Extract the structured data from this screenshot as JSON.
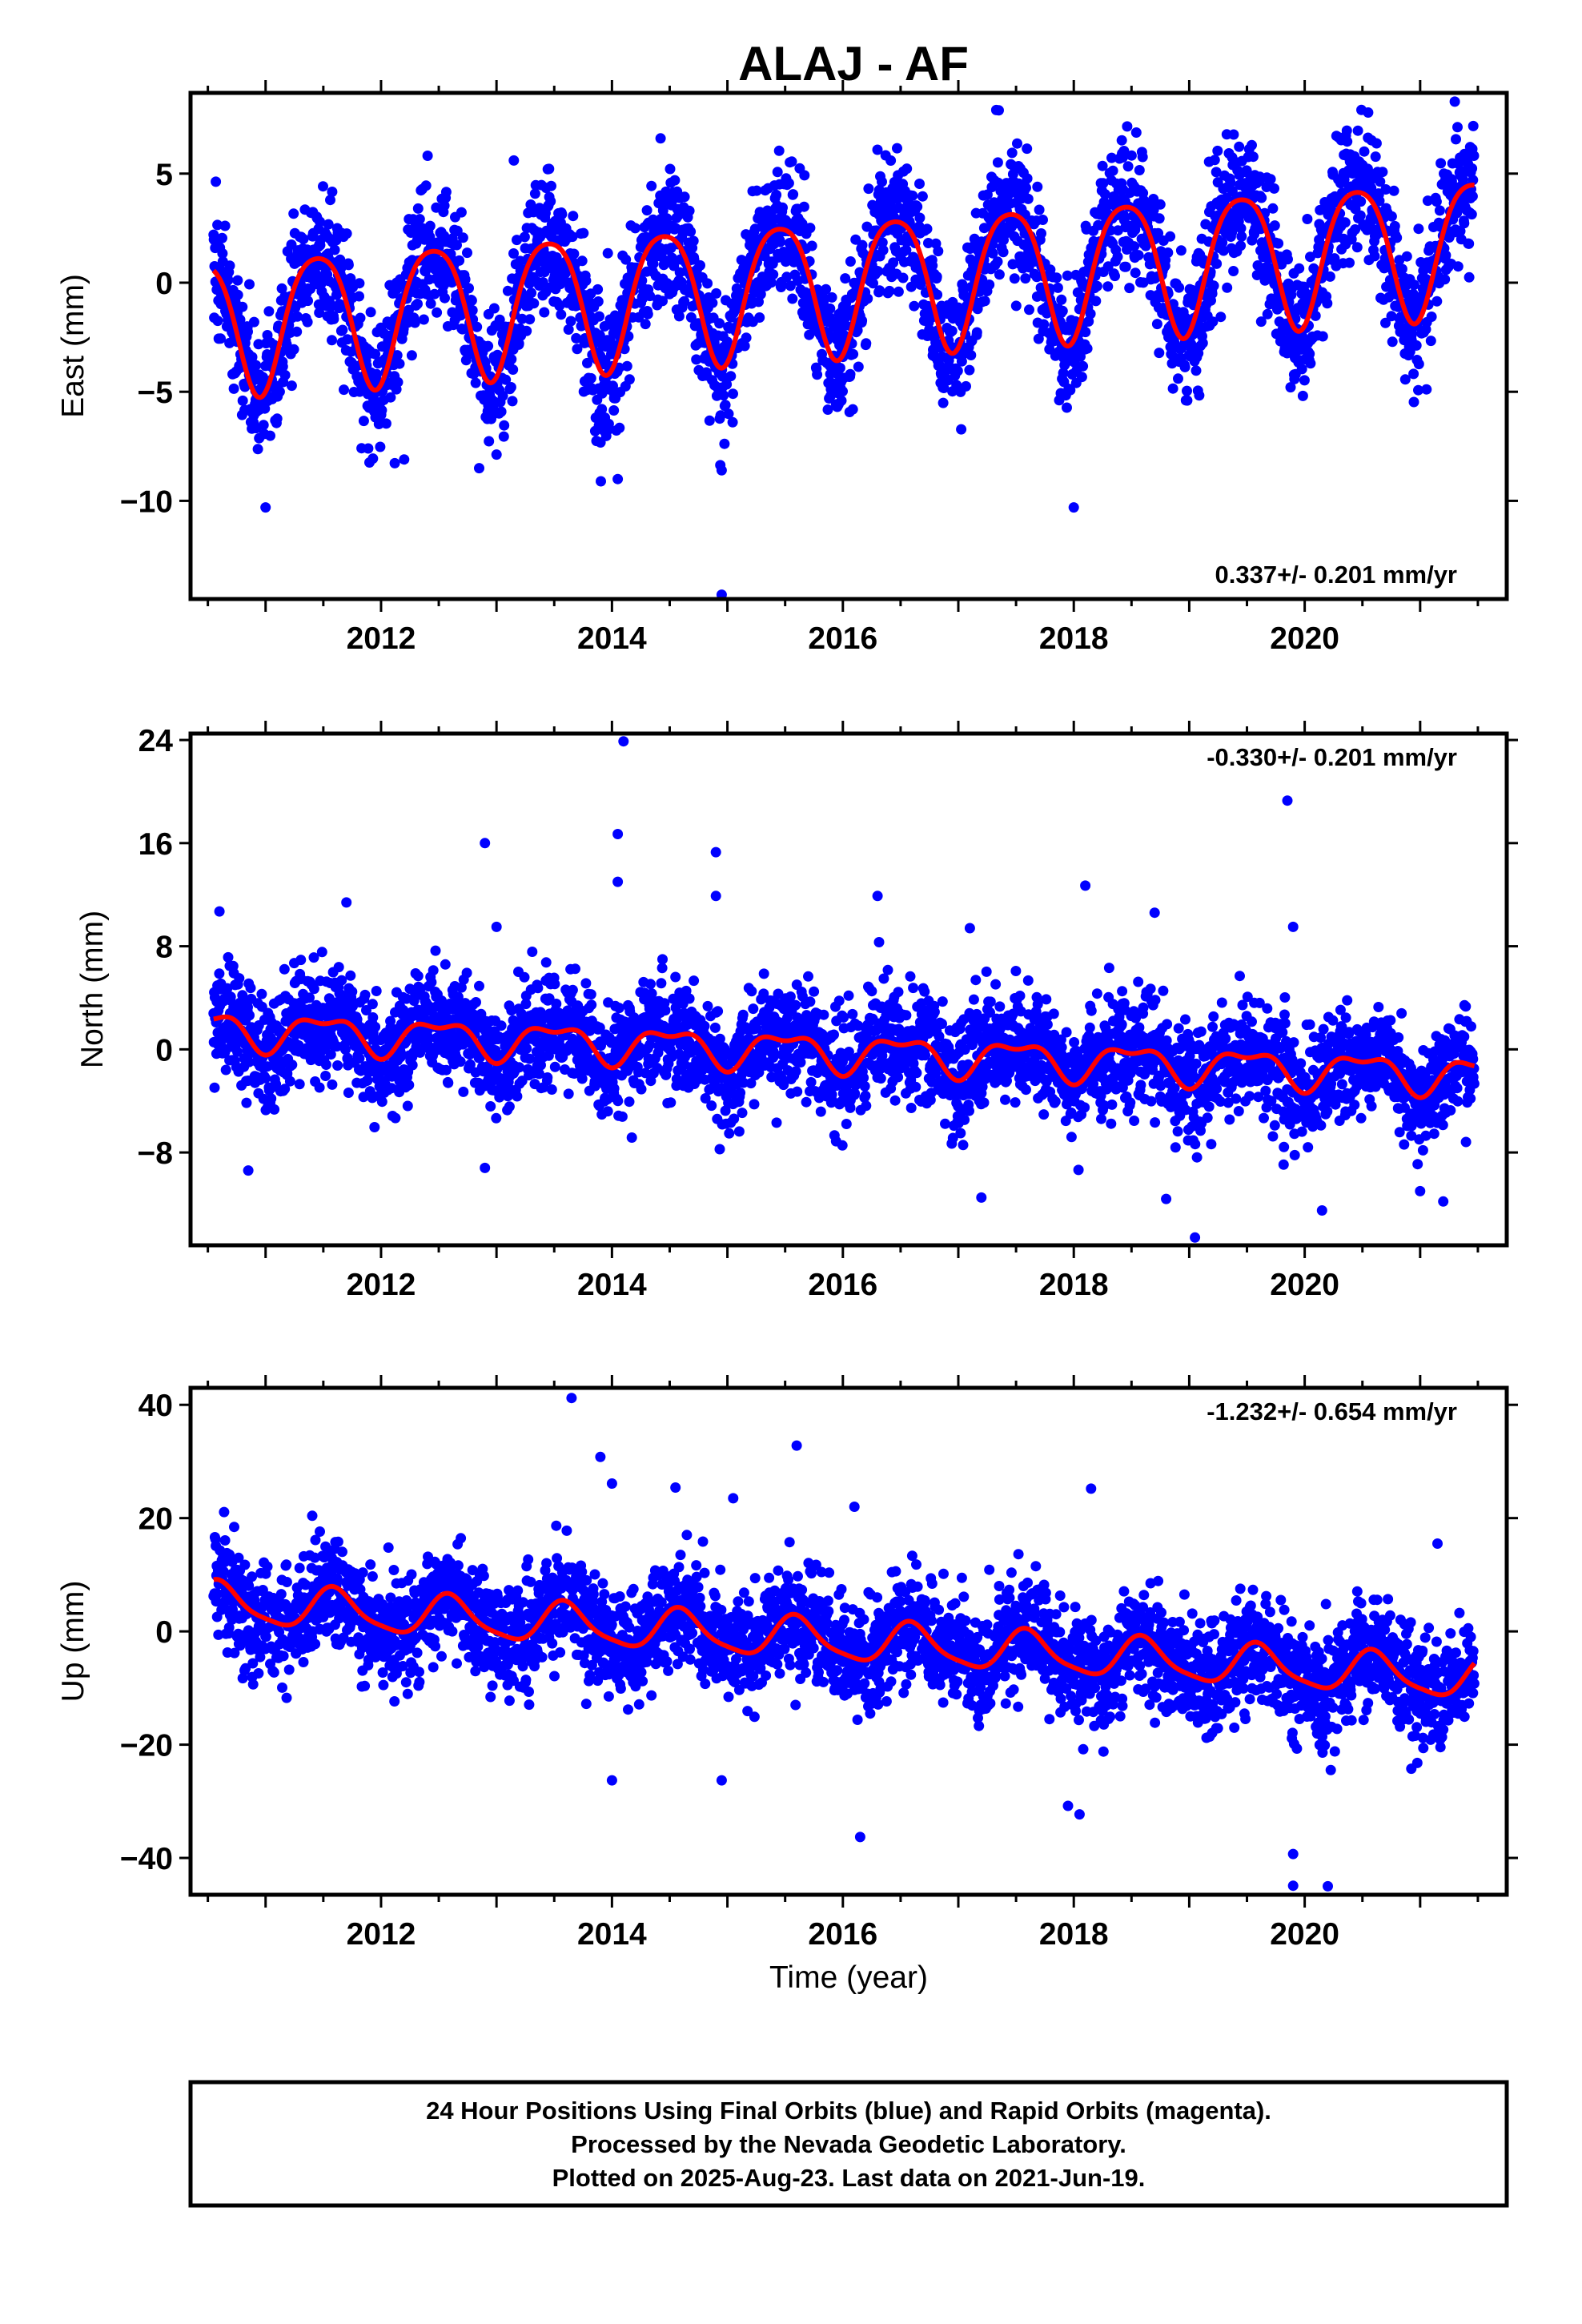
{
  "title": "ALAJ - AF",
  "x_axis_label": "Time (year)",
  "footer": {
    "line1": "24 Hour Positions Using Final Orbits (blue) and Rapid Orbits (magenta).",
    "line2": "Processed by the Nevada Geodetic Laboratory.",
    "line3": "Plotted on 2025-Aug-23. Last data on 2021-Jun-19."
  },
  "colors": {
    "points": "#0000ff",
    "fit": "#ff0000",
    "frame": "#000000"
  },
  "chart_data": [
    {
      "type": "scatter",
      "component": "east",
      "ylabel": "East (mm)",
      "rate_label": "0.337+/- 0.201 mm/yr",
      "rate_position": "bottom-right",
      "xlim": [
        2010.35,
        2021.75
      ],
      "ylim": [
        -14.5,
        8.7
      ],
      "yticks": [
        5,
        0,
        -5,
        -10
      ],
      "ytick_labels": [
        "5",
        "0",
        "−5",
        "−10"
      ],
      "xticks": [
        2012,
        2014,
        2016,
        2018,
        2020
      ],
      "xtick_labels": [
        "2012",
        "2014",
        "2016",
        "2018",
        "2020"
      ],
      "data_range": [
        2010.55,
        2021.47
      ],
      "trend": {
        "intercept": -1.8,
        "slope": 0.337,
        "ref_year": 2010.55
      },
      "annual": {
        "amplitude": 3.1,
        "peak_year_fraction": 0.45
      },
      "semiannual": {
        "amplitude": 0.5,
        "peak_year_fraction": 0.2
      },
      "scatter_sd": 1.5,
      "outliers": [
        [
          2011.0,
          -10.3
        ],
        [
          2012.2,
          -8.1
        ],
        [
          2012.85,
          -8.5
        ],
        [
          2014.05,
          -9.0
        ],
        [
          2014.95,
          -14.3
        ],
        [
          2014.95,
          -8.6
        ],
        [
          2018.0,
          -10.3
        ],
        [
          2017.35,
          7.9
        ],
        [
          2021.3,
          8.3
        ],
        [
          2020.55,
          7.8
        ],
        [
          2013.15,
          5.6
        ]
      ],
      "grid": false,
      "legend": "none"
    },
    {
      "type": "scatter",
      "component": "north",
      "ylabel": "North (mm)",
      "rate_label": "-0.330+/- 0.201 mm/yr",
      "rate_position": "top-right",
      "xlim": [
        2010.35,
        2021.75
      ],
      "ylim": [
        -15.2,
        24.5
      ],
      "yticks": [
        24,
        16,
        8,
        0,
        -8
      ],
      "ytick_labels": [
        "24",
        "16",
        "8",
        "0",
        "−8"
      ],
      "xticks": [
        2012,
        2014,
        2016,
        2018,
        2020
      ],
      "xtick_labels": [
        "2012",
        "2014",
        "2016",
        "2018",
        "2020"
      ],
      "data_range": [
        2010.55,
        2021.47
      ],
      "trend": {
        "intercept": 1.6,
        "slope": -0.33,
        "ref_year": 2010.55
      },
      "annual": {
        "amplitude": 1.3,
        "peak_year_fraction": 0.5
      },
      "semiannual": {
        "amplitude": 0.6,
        "peak_year_fraction": 0.25
      },
      "scatter_sd": 2.1,
      "outliers": [
        [
          2014.1,
          23.9
        ],
        [
          2019.85,
          19.3
        ],
        [
          2014.05,
          16.7
        ],
        [
          2012.9,
          16.0
        ],
        [
          2014.9,
          15.3
        ],
        [
          2014.05,
          13.0
        ],
        [
          2016.3,
          11.9
        ],
        [
          2018.1,
          12.7
        ],
        [
          2011.7,
          11.4
        ],
        [
          2010.6,
          10.7
        ],
        [
          2018.7,
          10.6
        ],
        [
          2014.9,
          11.9
        ],
        [
          2017.1,
          9.4
        ],
        [
          2013.0,
          9.5
        ],
        [
          2019.9,
          9.5
        ],
        [
          2010.85,
          -9.4
        ],
        [
          2012.9,
          -9.2
        ],
        [
          2019.05,
          -14.6
        ],
        [
          2020.15,
          -12.5
        ],
        [
          2018.8,
          -11.6
        ],
        [
          2017.2,
          -11.5
        ],
        [
          2021.2,
          -11.8
        ],
        [
          2021.0,
          -11.0
        ]
      ],
      "grid": false,
      "legend": "none"
    },
    {
      "type": "scatter",
      "component": "up",
      "ylabel": "Up (mm)",
      "rate_label": "-1.232+/- 0.654 mm/yr",
      "rate_position": "top-right",
      "xlim": [
        2010.35,
        2021.75
      ],
      "ylim": [
        -46.5,
        43
      ],
      "yticks": [
        40,
        20,
        0,
        -20,
        -40
      ],
      "ytick_labels": [
        "40",
        "20",
        "0",
        "−20",
        "−40"
      ],
      "xticks": [
        2012,
        2014,
        2016,
        2018,
        2020
      ],
      "xtick_labels": [
        "2012",
        "2014",
        "2016",
        "2018",
        "2020"
      ],
      "data_range": [
        2010.55,
        2021.47
      ],
      "trend": {
        "intercept": 5.0,
        "slope": -1.232,
        "ref_year": 2010.55
      },
      "annual": {
        "amplitude": 3.5,
        "peak_year_fraction": 0.6
      },
      "semiannual": {
        "amplitude": 0.8,
        "peak_year_fraction": 0.05
      },
      "scatter_sd": 4.8,
      "outliers": [
        [
          2013.65,
          41.2
        ],
        [
          2015.6,
          32.8
        ],
        [
          2013.9,
          30.8
        ],
        [
          2014.0,
          26.1
        ],
        [
          2014.55,
          25.4
        ],
        [
          2018.15,
          25.2
        ],
        [
          2015.05,
          23.5
        ],
        [
          2016.1,
          22.0
        ],
        [
          2014.0,
          -26.3
        ],
        [
          2014.95,
          -26.3
        ],
        [
          2016.15,
          -36.3
        ],
        [
          2017.95,
          -30.8
        ],
        [
          2018.05,
          -32.3
        ],
        [
          2019.9,
          -44.9
        ],
        [
          2019.9,
          -39.3
        ],
        [
          2020.2,
          -45.0
        ],
        [
          2021.15,
          15.5
        ]
      ],
      "grid": false,
      "legend": "none"
    }
  ]
}
